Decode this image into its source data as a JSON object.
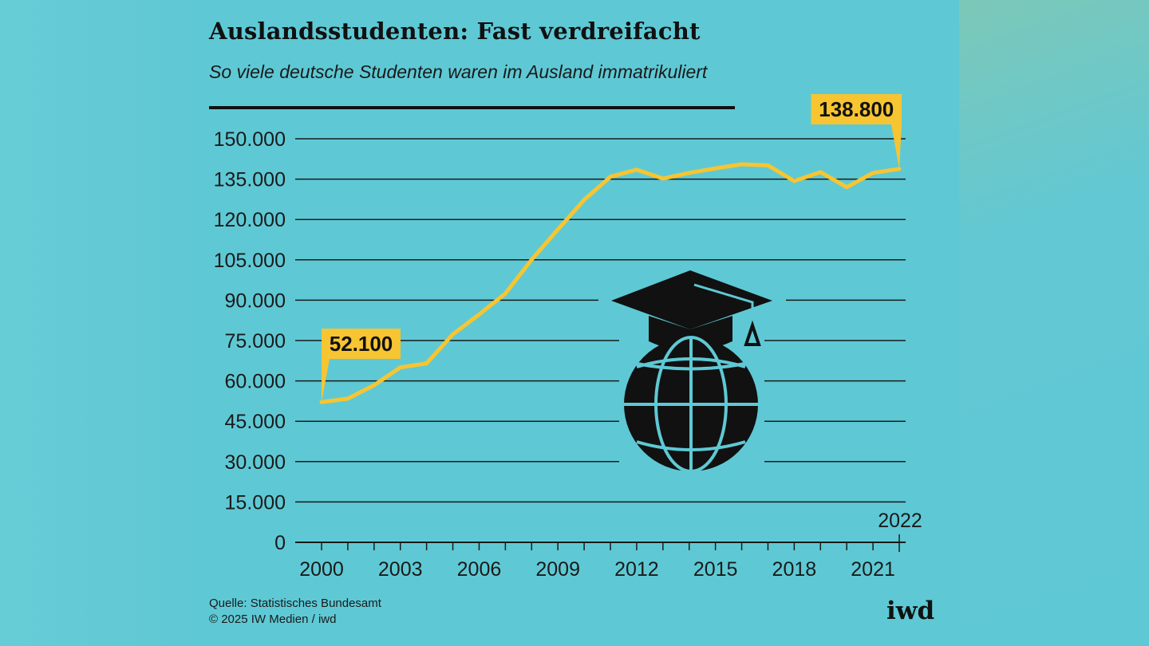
{
  "header": {
    "title": "Auslandsstudenten: Fast verdreifacht",
    "subtitle": "So viele deutsche Studenten waren im Ausland immatrikuliert"
  },
  "footer": {
    "source": "Quelle: Statistisches Bundesamt",
    "copyright": "© 2025 IW Medien / iwd",
    "logo": "iwd"
  },
  "colors": {
    "background": "#5ec9d5",
    "line": "#f7c531",
    "ink": "#111111"
  },
  "icon": "graduation-cap-globe-icon",
  "chart_data": {
    "type": "line",
    "title": "Auslandsstudenten: Fast verdreifacht",
    "subtitle": "So viele deutsche Studenten waren im Ausland immatrikuliert",
    "xlabel": "",
    "ylabel": "",
    "ylim": [
      0,
      150000
    ],
    "xlim": [
      2000,
      2022
    ],
    "grid": true,
    "y_ticks": [
      0,
      15000,
      30000,
      45000,
      60000,
      75000,
      90000,
      105000,
      120000,
      135000,
      150000
    ],
    "y_tick_labels": [
      "0",
      "15.000",
      "30.000",
      "45.000",
      "60.000",
      "75.000",
      "90.000",
      "105.000",
      "120.000",
      "135.000",
      "150.000"
    ],
    "x_tick_labels": [
      "2000",
      "2003",
      "2006",
      "2009",
      "2012",
      "2015",
      "2018",
      "2021"
    ],
    "x_tick_years": [
      2000,
      2003,
      2006,
      2009,
      2012,
      2015,
      2018,
      2021
    ],
    "last_year_label": "2022",
    "x": [
      2000,
      2001,
      2002,
      2003,
      2004,
      2005,
      2006,
      2007,
      2008,
      2009,
      2010,
      2011,
      2012,
      2013,
      2014,
      2015,
      2016,
      2017,
      2018,
      2019,
      2020,
      2021,
      2022
    ],
    "values": [
      52100,
      53400,
      58400,
      65000,
      66500,
      77300,
      84700,
      92500,
      105100,
      116300,
      127300,
      135900,
      138500,
      135200,
      137300,
      139000,
      140500,
      140100,
      134300,
      137600,
      132000,
      137300,
      138800
    ],
    "annotations": [
      {
        "year": 2000,
        "label": "52.100"
      },
      {
        "year": 2022,
        "label": "138.800"
      }
    ]
  }
}
